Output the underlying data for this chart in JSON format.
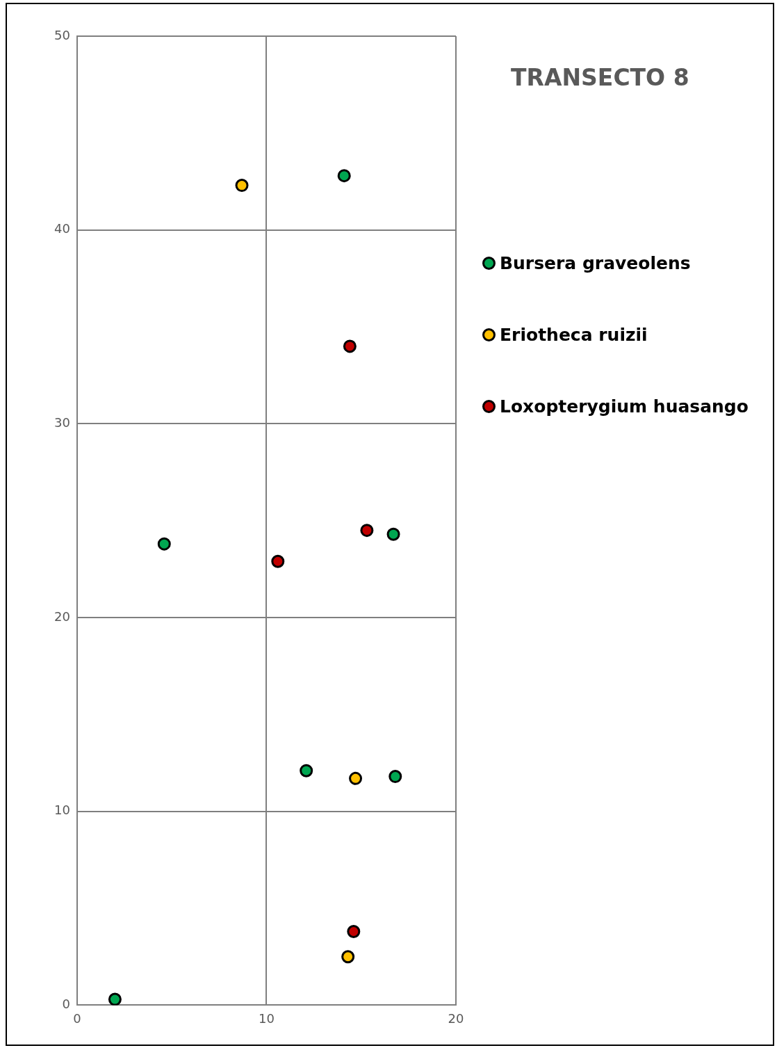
{
  "chart_data": {
    "type": "scatter",
    "title": "TRANSECTO 8",
    "xlim": [
      0,
      20
    ],
    "xticks": [
      0,
      10,
      20
    ],
    "ylim": [
      0,
      50
    ],
    "yticks": [
      0,
      10,
      20,
      30,
      40,
      50
    ],
    "grid": true,
    "legend": "right",
    "marker": "circle",
    "series": [
      {
        "name": "Bursera graveolens",
        "color": "#00a651",
        "x": [
          2.0,
          4.6,
          14.1,
          16.7,
          12.1,
          16.8
        ],
        "values": [
          0.3,
          23.8,
          42.8,
          24.3,
          12.1,
          11.8
        ]
      },
      {
        "name": "Eriotheca ruizii",
        "color": "#ffc000",
        "x": [
          8.7,
          14.7,
          14.3
        ],
        "values": [
          42.3,
          11.7,
          2.5
        ]
      },
      {
        "name": "Loxopterygium huasango",
        "color": "#c00000",
        "x": [
          14.4,
          15.3,
          10.6,
          14.6
        ],
        "values": [
          34.0,
          24.5,
          22.9,
          3.8
        ]
      }
    ]
  }
}
